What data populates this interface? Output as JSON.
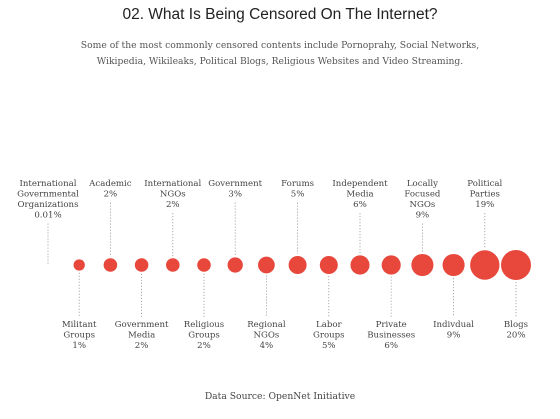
{
  "title": "02. What Is Being Censored On The Internet?",
  "subtitle": "Some of the most commonly censored contents include Pornoprahy, Social Networks, Wikipedia, Wikileaks, Political Blogs, Religious Websites and Video Streaming.",
  "source": "Data Source: OpenNet Initiative",
  "colors": {
    "bubble": "#e8483c",
    "stem": "#9a9a9a",
    "text": "#444444"
  },
  "chart_data": {
    "type": "bubble",
    "x": [
      "International Governmental Organizations",
      "Militant Groups",
      "Academic",
      "Government Media",
      "International NGOs",
      "Religious Groups",
      "Government",
      "Regional NGOs",
      "Forums",
      "Labor Groups",
      "Independent Media",
      "Private Businesses",
      "Locally Focused NGOs",
      "Indivdual",
      "Political Parties",
      "Blogs"
    ],
    "labels": [
      {
        "lines": [
          "International",
          "Governmental",
          "Organizations"
        ],
        "value": "0.01%",
        "pos": "top"
      },
      {
        "lines": [
          "Militant",
          "Groups"
        ],
        "value": "1%",
        "pos": "bottom"
      },
      {
        "lines": [
          "Academic"
        ],
        "value": "2%",
        "pos": "top"
      },
      {
        "lines": [
          "Government",
          "Media"
        ],
        "value": "2%",
        "pos": "bottom"
      },
      {
        "lines": [
          "International",
          "NGOs"
        ],
        "value": "2%",
        "pos": "top"
      },
      {
        "lines": [
          "Religious",
          "Groups"
        ],
        "value": "2%",
        "pos": "bottom"
      },
      {
        "lines": [
          "Government"
        ],
        "value": "3%",
        "pos": "top"
      },
      {
        "lines": [
          "Regional",
          "NGOs"
        ],
        "value": "4%",
        "pos": "bottom"
      },
      {
        "lines": [
          "Forums"
        ],
        "value": "5%",
        "pos": "top"
      },
      {
        "lines": [
          "Labor",
          "Groups"
        ],
        "value": "5%",
        "pos": "bottom"
      },
      {
        "lines": [
          "Independent",
          "Media"
        ],
        "value": "6%",
        "pos": "top"
      },
      {
        "lines": [
          "Private",
          "Businesses"
        ],
        "value": "6%",
        "pos": "bottom"
      },
      {
        "lines": [
          "Locally",
          "Focused",
          "NGOs"
        ],
        "value": "9%",
        "pos": "top"
      },
      {
        "lines": [
          "Indivdual"
        ],
        "value": "9%",
        "pos": "bottom"
      },
      {
        "lines": [
          "Political",
          "Parties"
        ],
        "value": "19%",
        "pos": "top"
      },
      {
        "lines": [
          "Blogs"
        ],
        "value": "20%",
        "pos": "bottom"
      }
    ],
    "values": [
      0.01,
      1,
      2,
      2,
      2,
      2,
      3,
      4,
      5,
      5,
      6,
      6,
      9,
      9,
      19,
      20
    ]
  }
}
